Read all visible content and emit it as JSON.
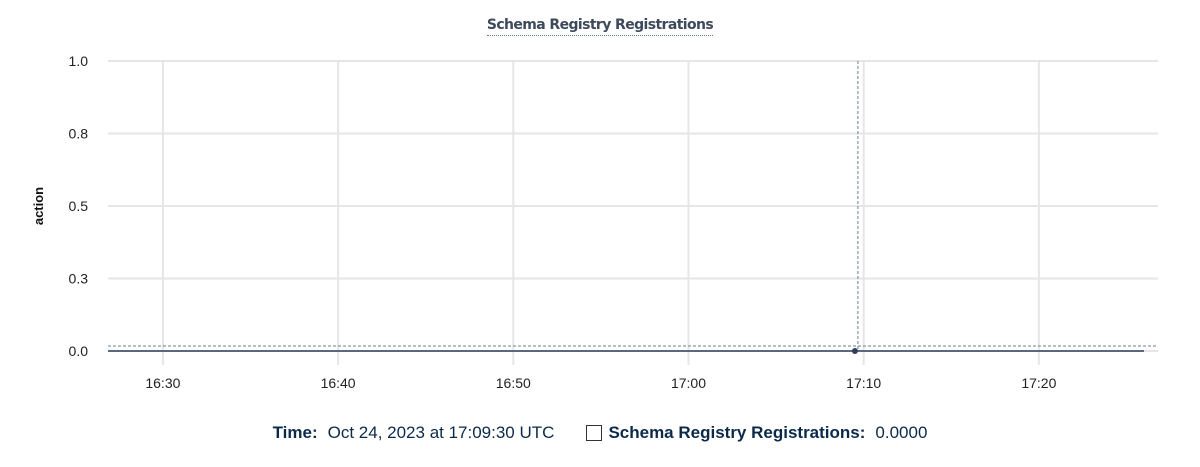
{
  "chart_data": {
    "type": "line",
    "title": "Schema Registry Registrations",
    "ylabel": "action",
    "xlabel": "",
    "ylim": [
      0,
      1
    ],
    "yticks": [
      0,
      0.25,
      0.5,
      0.75,
      1.0
    ],
    "ytick_labels": [
      "0.0",
      "0.3",
      "0.5",
      "0.8",
      "1.0"
    ],
    "xlim": [
      "16:26:52",
      "17:26:00"
    ],
    "xticks": [
      "16:30",
      "16:40",
      "16:50",
      "17:00",
      "17:10",
      "17:20"
    ],
    "grid": true,
    "series": [
      {
        "name": "Schema Registry Registrations",
        "color": "#2e3f5c",
        "x": [
          "16:26:52",
          "16:40:00",
          "16:50:00",
          "17:00:00",
          "17:09:30",
          "17:20:00",
          "17:26:00"
        ],
        "values": [
          0,
          0,
          0,
          0,
          0,
          0,
          0
        ]
      }
    ],
    "hover": {
      "x": "17:09:30",
      "value": 0
    }
  },
  "legend": {
    "time_label": "Time:",
    "time_value": "Oct 24, 2023 at 17:09:30 UTC",
    "series_label": "Schema Registry Registrations:",
    "series_value": "0.0000"
  }
}
